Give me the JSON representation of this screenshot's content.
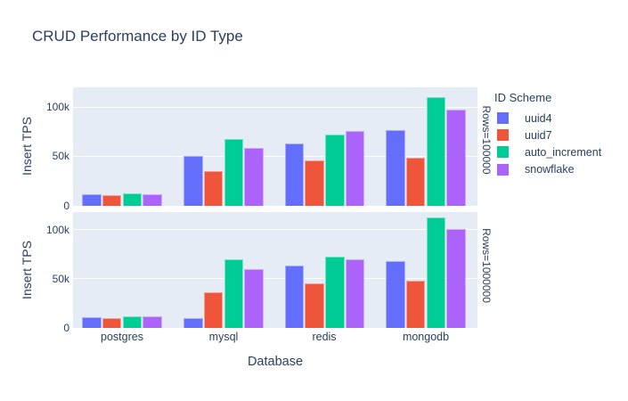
{
  "title": "CRUD Performance by ID Type",
  "colors": {
    "uuid4": "#636EFA",
    "uuid7": "#EF553B",
    "auto_increment": "#00CC96",
    "snowflake": "#AB63FA",
    "plot_background": "#E5ECF6",
    "gridline": "#FFFFFF",
    "text": "#2A3F5F"
  },
  "legend": {
    "title": "ID Scheme",
    "items": [
      {
        "label": "uuid4",
        "color": "#636EFA"
      },
      {
        "label": "uuid7",
        "color": "#EF553B"
      },
      {
        "label": "auto_increment",
        "color": "#00CC96"
      },
      {
        "label": "snowflake",
        "color": "#AB63FA"
      }
    ]
  },
  "axes": {
    "x_title": "Database",
    "y_title": "Insert TPS",
    "y_ticks": [
      "100k",
      "50k",
      "0"
    ]
  },
  "chart_data": {
    "type": "bar",
    "title": "CRUD Performance by ID Type",
    "categories": [
      "postgres",
      "mysql",
      "redis",
      "mongodb"
    ],
    "xlabel": "Database",
    "ylabel": "Insert TPS",
    "ylim": [
      0,
      120000
    ],
    "grid": true,
    "legend_position": "right",
    "legend_title": "ID Scheme",
    "facets": [
      {
        "label": "Rows=100000",
        "series": [
          {
            "name": "uuid4",
            "color": "#636EFA",
            "values": [
              12000,
              51000,
              64000,
              77500
            ]
          },
          {
            "name": "uuid7",
            "color": "#EF553B",
            "values": [
              10500,
              35500,
              46500,
              49500
            ]
          },
          {
            "name": "auto_increment",
            "color": "#00CC96",
            "values": [
              12500,
              68500,
              72500,
              111000
            ]
          },
          {
            "name": "snowflake",
            "color": "#AB63FA",
            "values": [
              12000,
              59000,
              76500,
              98500
            ]
          }
        ]
      },
      {
        "label": "Rows=1000000",
        "series": [
          {
            "name": "uuid4",
            "color": "#636EFA",
            "values": [
              11000,
              10000,
              64000,
              68500
            ]
          },
          {
            "name": "uuid7",
            "color": "#EF553B",
            "values": [
              10000,
              36000,
              45500,
              48000
            ]
          },
          {
            "name": "auto_increment",
            "color": "#00CC96",
            "values": [
              12000,
              70000,
              73000,
              113000
            ]
          },
          {
            "name": "snowflake",
            "color": "#AB63FA",
            "values": [
              11500,
              60000,
              70000,
              100500
            ]
          }
        ]
      }
    ]
  }
}
